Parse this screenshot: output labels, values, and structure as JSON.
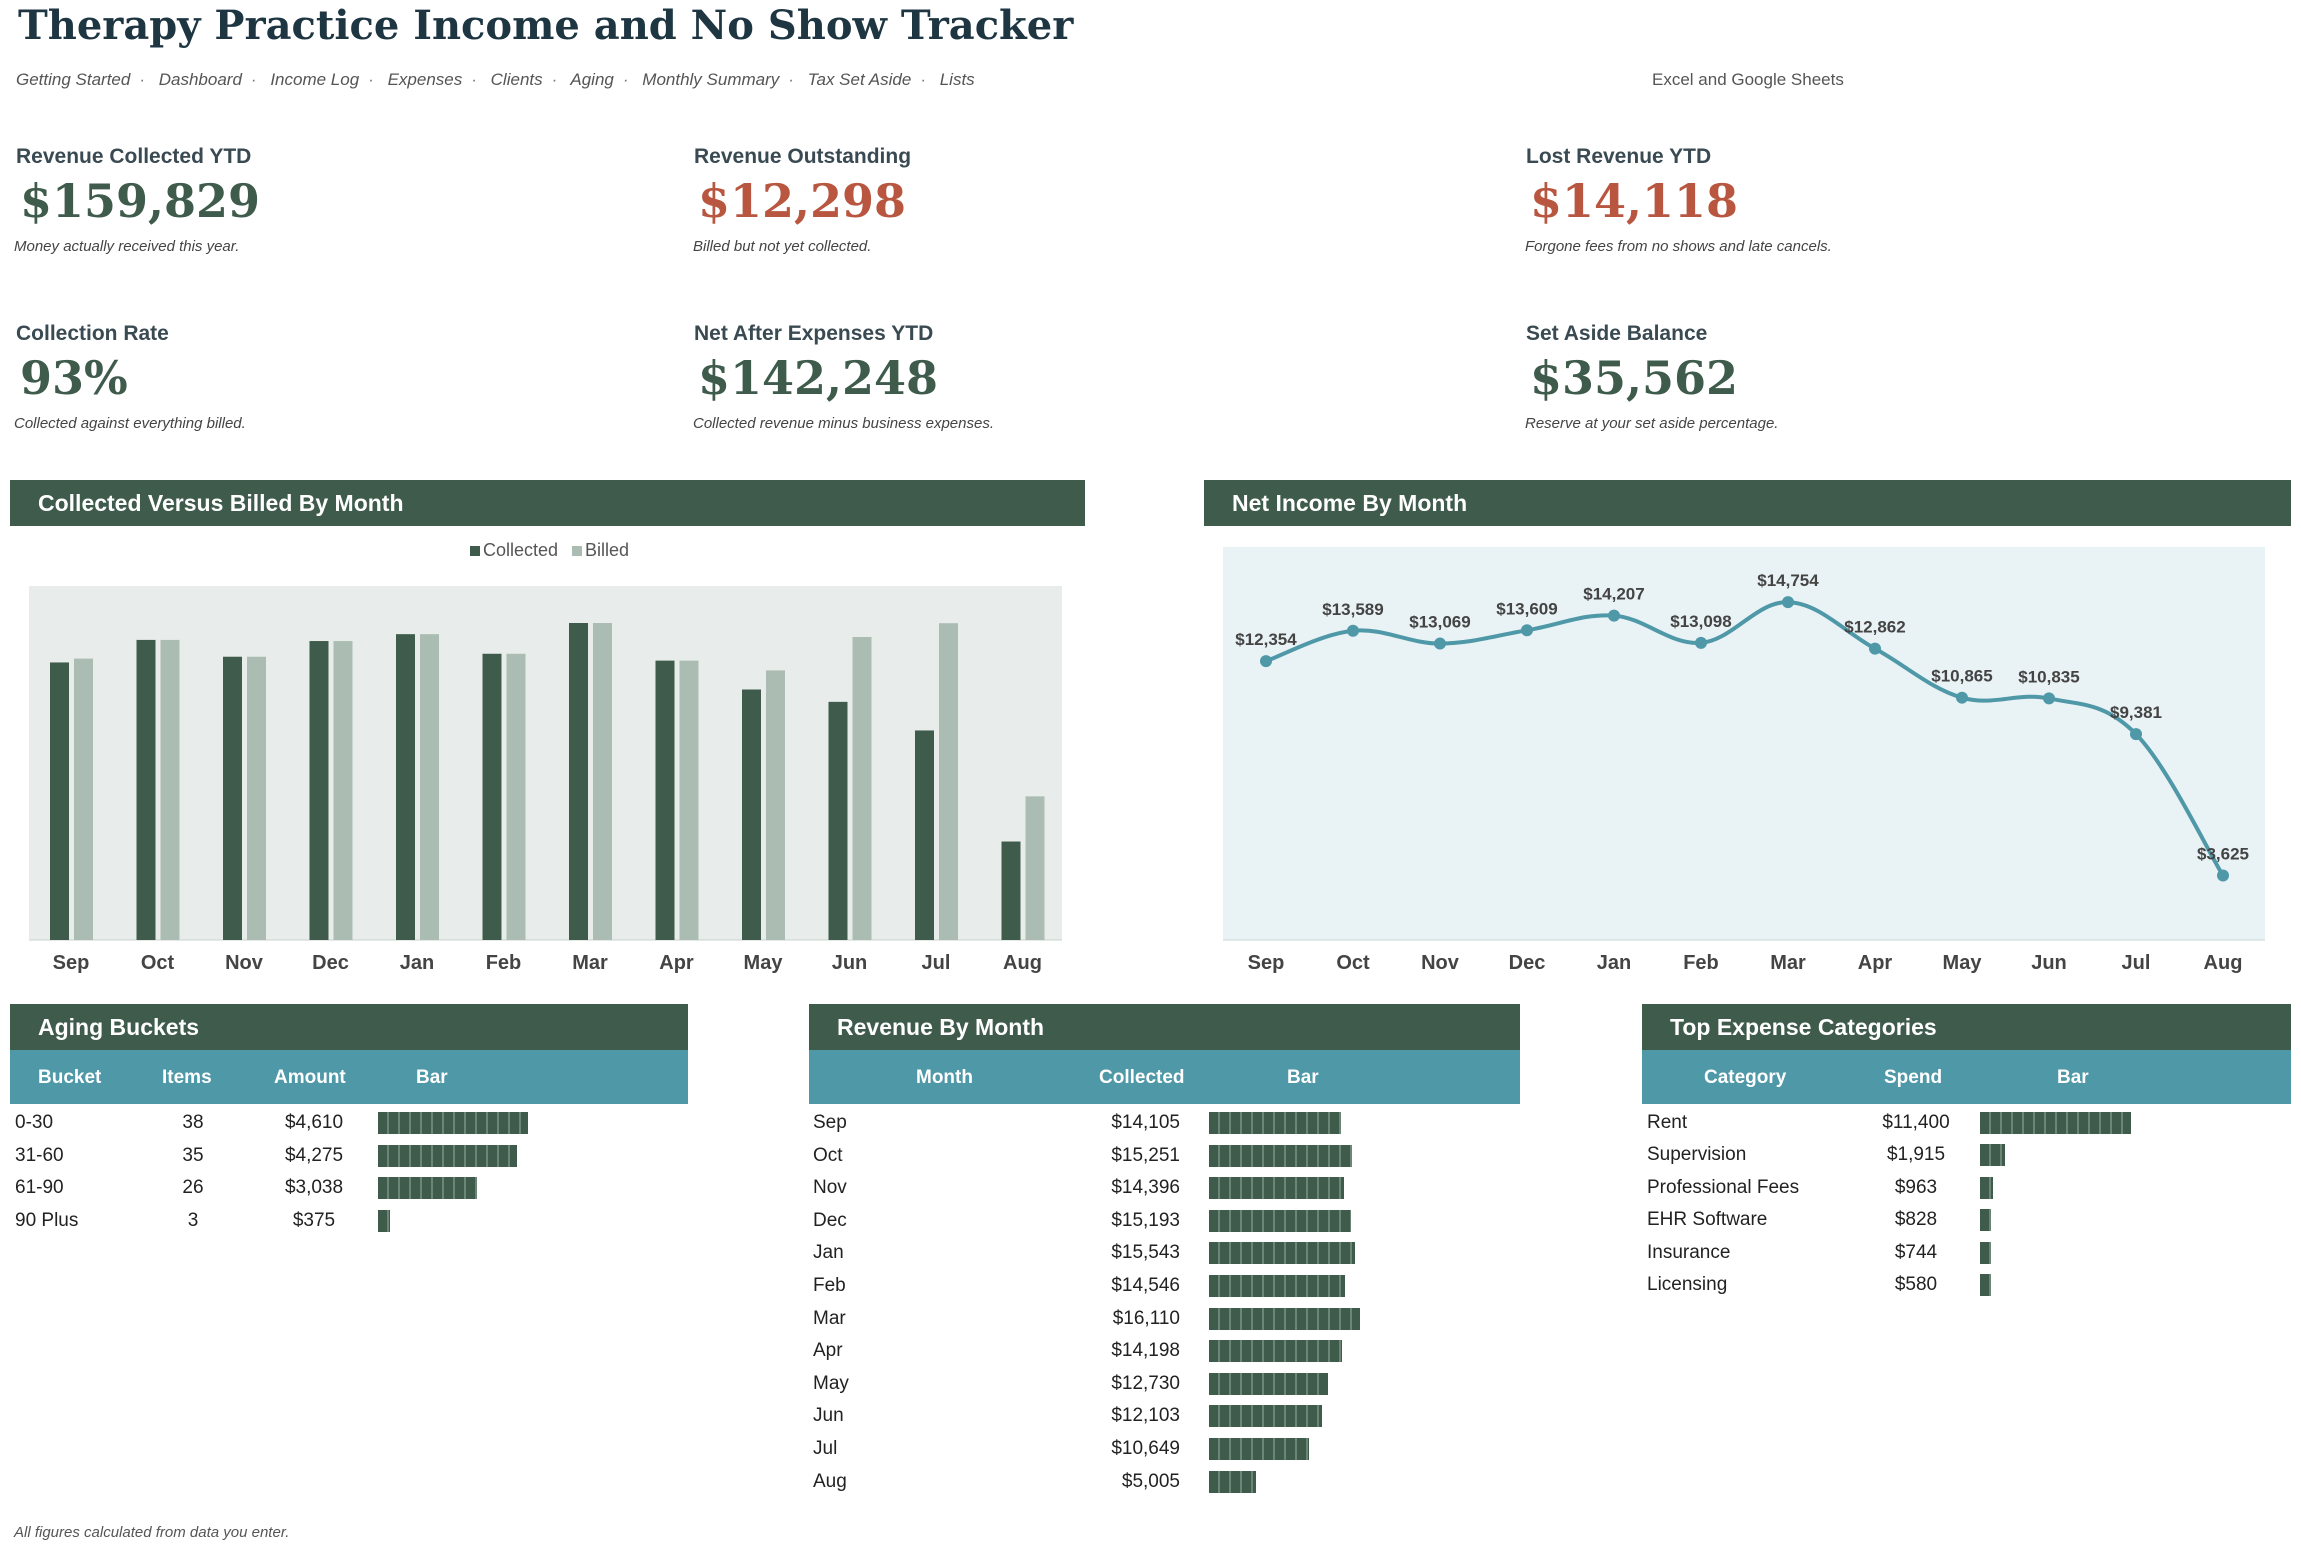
{
  "header": {
    "title": "Therapy Practice Income and No Show Tracker",
    "subtitle": "Excel and Google Sheets",
    "nav": [
      "Getting Started",
      "Dashboard",
      "Income Log",
      "Expenses",
      "Clients",
      "Aging",
      "Monthly Summary",
      "Tax Set Aside",
      "Lists"
    ],
    "nav_separator": "·"
  },
  "kpis": {
    "revenue_collected": {
      "label": "Revenue Collected YTD",
      "value": "$159,829",
      "note": "Money actually received this year."
    },
    "revenue_outstanding": {
      "label": "Revenue Outstanding",
      "value": "$12,298",
      "note": "Billed but not yet collected."
    },
    "lost_revenue": {
      "label": "Lost Revenue YTD",
      "value": "$14,118",
      "note": "Forgone fees from no shows and late cancels."
    },
    "collection_rate": {
      "label": "Collection Rate",
      "value": "93%",
      "note": "Collected against everything billed."
    },
    "net_after_expenses": {
      "label": "Net After Expenses YTD",
      "value": "$142,248",
      "note": "Collected revenue minus business expenses."
    },
    "set_aside": {
      "label": "Set Aside Balance",
      "value": "$35,562",
      "note": "Reserve at your set aside percentage."
    }
  },
  "colors": {
    "dark_green": "#3e5b4b",
    "light_green": "#abbdb2",
    "teal": "#4e98a8",
    "red": "#b85640",
    "chart_bg_bar": "#e8edeb",
    "chart_bg_line": "#e9f2f4"
  },
  "charts": {
    "collected_vs_billed": {
      "title": "Collected Versus Billed By Month"
    },
    "net_income": {
      "title": "Net Income By Month"
    }
  },
  "chart_data": [
    {
      "type": "bar",
      "title": "Collected Versus Billed By Month",
      "categories": [
        "Sep",
        "Oct",
        "Nov",
        "Dec",
        "Jan",
        "Feb",
        "Mar",
        "Apr",
        "May",
        "Jun",
        "Jul",
        "Aug"
      ],
      "series": [
        {
          "name": "Collected",
          "color": "#3e5b4b",
          "values": [
            14105,
            15251,
            14396,
            15193,
            15543,
            14546,
            16110,
            14198,
            12730,
            12103,
            10649,
            5005
          ]
        },
        {
          "name": "Billed",
          "color": "#abbdb2",
          "values": [
            14300,
            15251,
            14396,
            15193,
            15543,
            14546,
            16110,
            14198,
            13700,
            15400,
            16100,
            7300
          ]
        }
      ],
      "legend": "top-center",
      "ylim": [
        0,
        18000
      ],
      "grid": false
    },
    {
      "type": "line",
      "title": "Net Income By Month",
      "categories": [
        "Sep",
        "Oct",
        "Nov",
        "Dec",
        "Jan",
        "Feb",
        "Mar",
        "Apr",
        "May",
        "Jun",
        "Jul",
        "Aug"
      ],
      "values": [
        12354,
        13589,
        13069,
        13609,
        14207,
        13098,
        14754,
        12862,
        10865,
        10835,
        9381,
        3625
      ],
      "labels": [
        "$12,354",
        "$13,589",
        "$13,069",
        "$13,609",
        "$14,207",
        "$13,098",
        "$14,754",
        "$12,862",
        "$10,865",
        "$10,835",
        "$9,381",
        "$3,625"
      ],
      "ylim": [
        1000,
        17000
      ],
      "smooth": true,
      "grid": false
    }
  ],
  "aging": {
    "title": "Aging Buckets",
    "columns": [
      "Bucket",
      "Items",
      "Amount",
      "Bar"
    ],
    "rows": [
      {
        "bucket": "0-30",
        "items": "38",
        "amount": "$4,610",
        "value": 4610
      },
      {
        "bucket": "31-60",
        "items": "35",
        "amount": "$4,275",
        "value": 4275
      },
      {
        "bucket": "61-90",
        "items": "26",
        "amount": "$3,038",
        "value": 3038
      },
      {
        "bucket": "90 Plus",
        "items": "3",
        "amount": "$375",
        "value": 375
      }
    ]
  },
  "revenue_by_month": {
    "title": "Revenue By Month",
    "columns": [
      "Month",
      "Collected",
      "Bar"
    ],
    "rows": [
      {
        "month": "Sep",
        "collected": "$14,105",
        "value": 14105
      },
      {
        "month": "Oct",
        "collected": "$15,251",
        "value": 15251
      },
      {
        "month": "Nov",
        "collected": "$14,396",
        "value": 14396
      },
      {
        "month": "Dec",
        "collected": "$15,193",
        "value": 15193
      },
      {
        "month": "Jan",
        "collected": "$15,543",
        "value": 15543
      },
      {
        "month": "Feb",
        "collected": "$14,546",
        "value": 14546
      },
      {
        "month": "Mar",
        "collected": "$16,110",
        "value": 16110
      },
      {
        "month": "Apr",
        "collected": "$14,198",
        "value": 14198
      },
      {
        "month": "May",
        "collected": "$12,730",
        "value": 12730
      },
      {
        "month": "Jun",
        "collected": "$12,103",
        "value": 12103
      },
      {
        "month": "Jul",
        "collected": "$10,649",
        "value": 10649
      },
      {
        "month": "Aug",
        "collected": "$5,005",
        "value": 5005
      }
    ]
  },
  "expenses": {
    "title": "Top Expense Categories",
    "columns": [
      "Category",
      "Spend",
      "Bar"
    ],
    "rows": [
      {
        "category": "Rent",
        "spend": "$11,400",
        "value": 11400
      },
      {
        "category": "Supervision",
        "spend": "$1,915",
        "value": 1915
      },
      {
        "category": "Professional Fees",
        "spend": "$963",
        "value": 963
      },
      {
        "category": "EHR Software",
        "spend": "$828",
        "value": 828
      },
      {
        "category": "Insurance",
        "spend": "$744",
        "value": 744
      },
      {
        "category": "Licensing",
        "spend": "$580",
        "value": 580
      }
    ]
  },
  "footer": "All figures calculated from data you enter."
}
